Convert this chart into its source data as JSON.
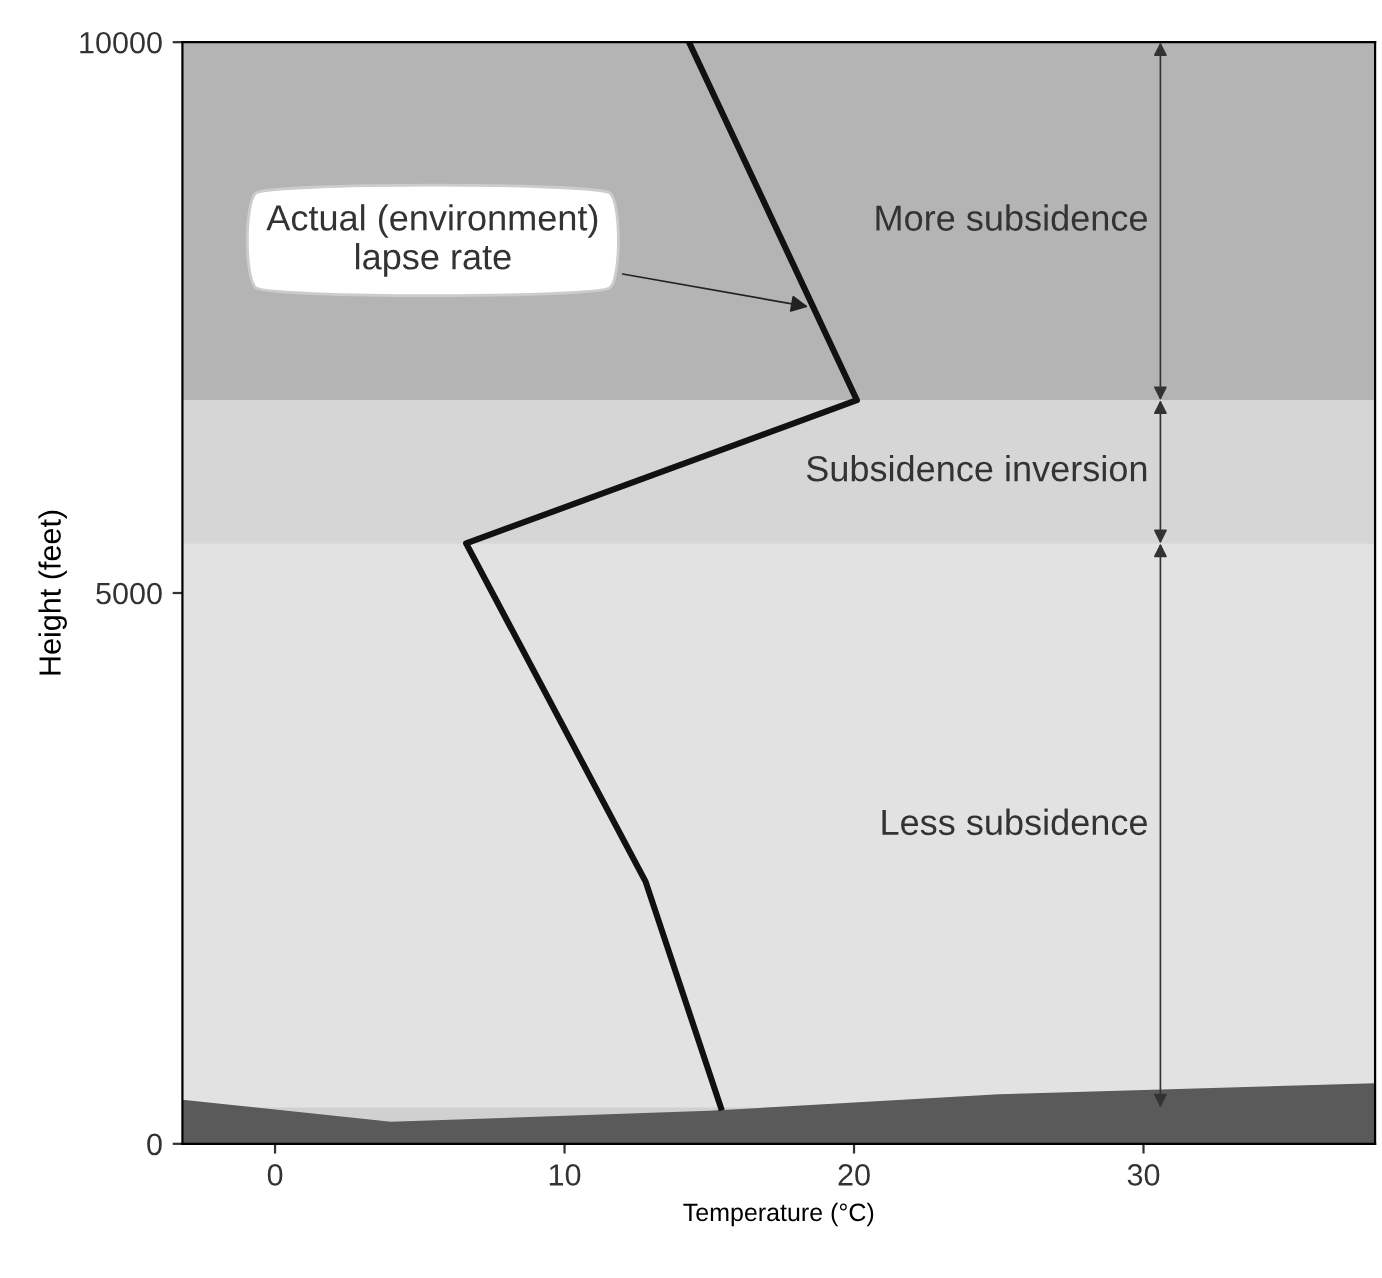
{
  "chart_data": {
    "type": "line",
    "xlabel": "Temperature (°C)",
    "ylabel": "Height (feet)",
    "xlim": [
      -3.2,
      38
    ],
    "ylim": [
      0,
      10000
    ],
    "xticks": [
      0,
      10,
      20,
      30
    ],
    "yticks": [
      0,
      5000,
      10000
    ],
    "grid": false,
    "series": [
      {
        "type": "area",
        "color": "#5a5a5a",
        "x": [
          -3.2,
          4,
          15,
          25,
          38
        ],
        "values": [
          400,
          200,
          300,
          450,
          550
        ]
      },
      {
        "color": "#111111",
        "x": [
          14.3,
          20.1,
          6.6,
          12.8,
          15.4
        ],
        "values": [
          10000,
          6750,
          5450,
          2380,
          330
        ]
      }
    ],
    "bands": [
      {
        "axis": "y",
        "from": 6750,
        "to": 10000,
        "label": "More subsidence",
        "color": "#b4b4b4"
      },
      {
        "axis": "y",
        "from": 5450,
        "to": 6750,
        "label": "Subsidence inversion",
        "color": "#d6d6d6"
      },
      {
        "axis": "y",
        "from": 330,
        "to": 5450,
        "label": "Less subsidence",
        "color": "#e2e2e2"
      }
    ],
    "annotations": [
      {
        "text": "Actual (environment)\nlapse rate",
        "x": 18.6,
        "y": 7590
      }
    ]
  }
}
